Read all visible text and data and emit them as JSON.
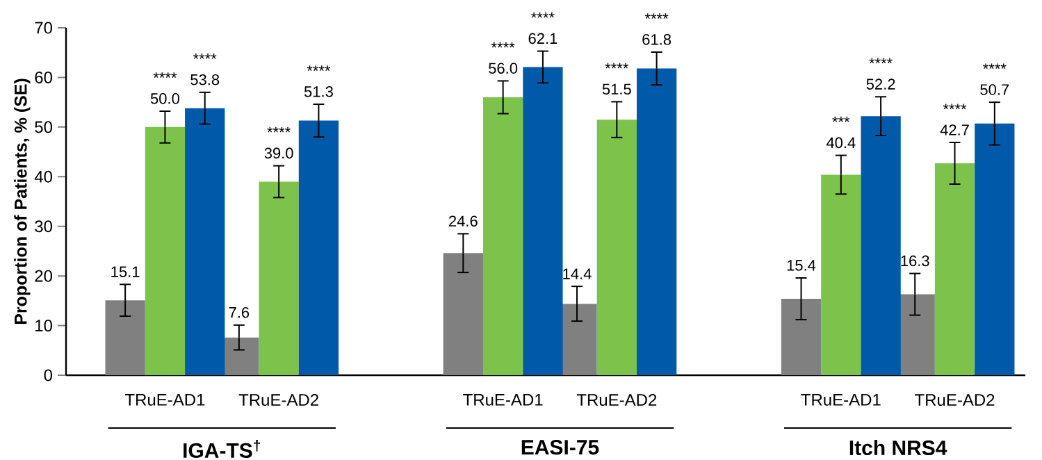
{
  "chart_data": {
    "type": "bar",
    "ylabel": "Proportion of Patients, % (SE)",
    "categories": [
      "TRuE-AD1",
      "TRuE-AD2",
      "TRuE-AD1",
      "TRuE-AD2",
      "TRuE-AD1",
      "TRuE-AD2"
    ],
    "series": [
      {
        "color": "#808080",
        "values": [
          15.1,
          7.6,
          24.6,
          14.4,
          15.4,
          16.3
        ],
        "errors": [
          3.2,
          2.5,
          3.9,
          3.5,
          4.2,
          4.2
        ],
        "value_labels": [
          "15.1",
          "7.6",
          "24.6",
          "14.4",
          "15.4",
          "16.3"
        ]
      },
      {
        "color": "#7dc24b",
        "values": [
          50.0,
          39.0,
          56.0,
          51.5,
          40.4,
          42.7
        ],
        "errors": [
          3.2,
          3.2,
          3.3,
          3.6,
          3.9,
          4.2
        ],
        "value_labels": [
          "**** 50.0",
          "**** 39.0",
          "**** 56.0",
          "**** 51.5",
          "*** 40.4",
          "**** 42.7"
        ]
      },
      {
        "color": "#005aa9",
        "values": [
          53.8,
          51.3,
          62.1,
          61.8,
          52.2,
          50.7
        ],
        "errors": [
          3.2,
          3.3,
          3.2,
          3.3,
          3.9,
          4.3
        ],
        "value_labels": [
          "**** 53.8",
          "**** 51.3",
          "**** 62.1",
          "**** 61.8",
          "**** 52.2",
          "**** 50.7"
        ]
      }
    ],
    "annotations": [
      "IGA-TS$^{†}$",
      "EASI-75",
      "Itch NRS4"
    ],
    "ylim": [
      0,
      70
    ],
    "yticks": [
      0,
      10,
      20,
      30,
      40,
      50,
      60,
      70
    ],
    "grid": false
  }
}
